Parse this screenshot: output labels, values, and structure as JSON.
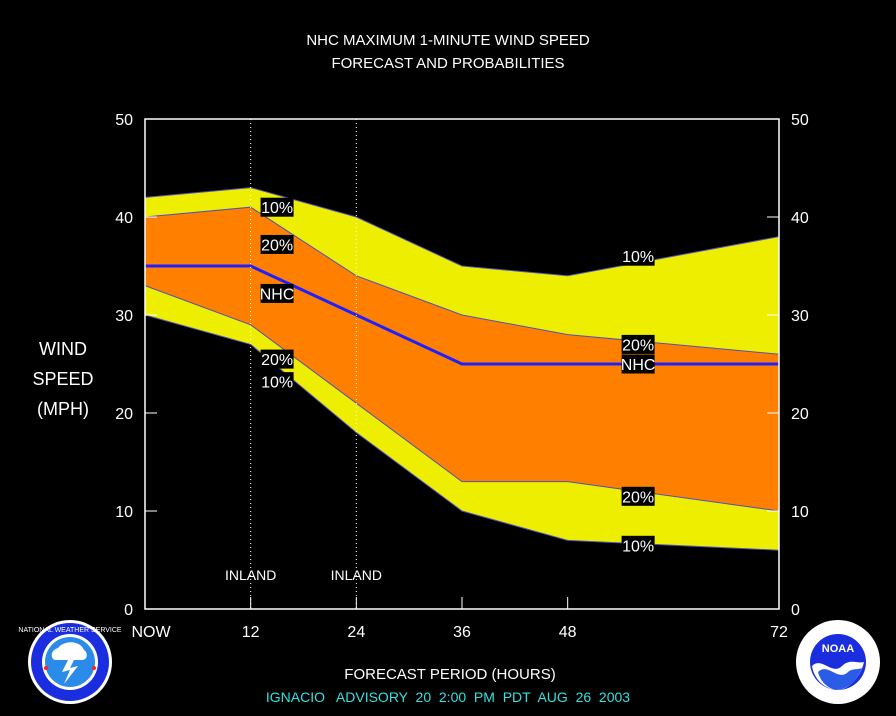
{
  "chart_data": {
    "type": "area",
    "title": "NHC MAXIMUM 1-MINUTE WIND SPEED",
    "subtitle": "FORECAST AND PROBABILITIES",
    "xlabel": "FORECAST PERIOD (HOURS)",
    "ylabel_lines": [
      "WIND",
      "SPEED",
      "(MPH)"
    ],
    "xlim": [
      0,
      72
    ],
    "ylim": [
      0,
      50
    ],
    "x_ticks": [
      {
        "value": 0,
        "label": "NOW"
      },
      {
        "value": 12,
        "label": "12"
      },
      {
        "value": 24,
        "label": "24"
      },
      {
        "value": 36,
        "label": "36"
      },
      {
        "value": 48,
        "label": "48"
      },
      {
        "value": 72,
        "label": "72"
      }
    ],
    "y_ticks": [
      {
        "value": 0,
        "label": "0"
      },
      {
        "value": 10,
        "label": "10"
      },
      {
        "value": 20,
        "label": "20"
      },
      {
        "value": 30,
        "label": "30"
      },
      {
        "value": 40,
        "label": "40"
      },
      {
        "value": 50,
        "label": "50"
      }
    ],
    "x": [
      0,
      12,
      24,
      36,
      48,
      72
    ],
    "series": [
      {
        "name": "10%",
        "values": [
          42,
          43,
          40,
          35,
          34,
          38
        ]
      },
      {
        "name": "20%",
        "values": [
          40,
          41,
          34,
          30,
          28,
          26
        ]
      },
      {
        "name": "NHC",
        "values": [
          35,
          35,
          30,
          25,
          25,
          25
        ]
      },
      {
        "name": "20%",
        "values": [
          33,
          29,
          21,
          13,
          13,
          10
        ]
      },
      {
        "name": "10%",
        "values": [
          30,
          27,
          18,
          10,
          7,
          6
        ]
      }
    ],
    "annotations": [
      {
        "x": 12,
        "label": "INLAND"
      },
      {
        "x": 24,
        "label": "INLAND"
      }
    ],
    "line_labels": [
      {
        "text": "10%",
        "x": 15,
        "y": 41.0
      },
      {
        "text": "20%",
        "x": 15,
        "y": 37.2
      },
      {
        "text": "NHC",
        "x": 15,
        "y": 32.2
      },
      {
        "text": "20%",
        "x": 15,
        "y": 25.5
      },
      {
        "text": "10%",
        "x": 15,
        "y": 23.2
      },
      {
        "text": "10%",
        "x": 56,
        "y": 36.0
      },
      {
        "text": "20%",
        "x": 56,
        "y": 27.0
      },
      {
        "text": "NHC",
        "x": 56,
        "y": 25.0
      },
      {
        "text": "20%",
        "x": 56,
        "y": 11.5
      },
      {
        "text": "10%",
        "x": 56,
        "y": 6.5
      }
    ],
    "colors": {
      "outer_band": "#eeee00",
      "inner_band": "#ff8000",
      "nhc_line": "#2020ff",
      "band_edge": "#5050c0",
      "plot_frame": "#ffffff",
      "background": "#000000",
      "advisory_text": "#33e0e0"
    },
    "grid": "dotted vertical lines at 12 and 24"
  },
  "advisory": "IGNACIO   ADVISORY  20  2:00  PM  PDT  AUG  26  2003",
  "logos": {
    "left": {
      "icon": "national-weather-service-logo",
      "text": "NATIONAL WEATHER SERVICE"
    },
    "right": {
      "icon": "noaa-logo",
      "text": "NOAA"
    }
  }
}
